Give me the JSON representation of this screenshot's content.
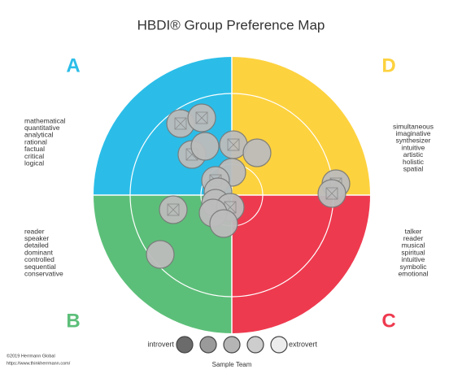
{
  "title": "HBDI® Group Preference Map",
  "quadrants": [
    {
      "letter": "A",
      "words": [
        "mathematical",
        "quantitative",
        "analytical",
        "rational",
        "factual",
        "critical",
        "logical"
      ]
    },
    {
      "letter": "B",
      "words": [
        "reader",
        "speaker",
        "detailed",
        "dominant",
        "controlled",
        "sequential",
        "conservative"
      ]
    },
    {
      "letter": "C",
      "words": [
        "talker",
        "reader",
        "musical",
        "spiritual",
        "intuitive",
        "symbolic",
        "emotional"
      ]
    },
    {
      "letter": "D",
      "words": [
        "simultaneous",
        "imaginative",
        "synthesizer",
        "intuitive",
        "artistic",
        "holistic",
        "spatial"
      ]
    }
  ],
  "legend": {
    "left": "introvert",
    "right": "extrovert"
  },
  "team": "Sample Team",
  "footer": {
    "copyright": "©2019 Herrmann Global",
    "url": "https://www.thinkherrmann.com/"
  }
}
